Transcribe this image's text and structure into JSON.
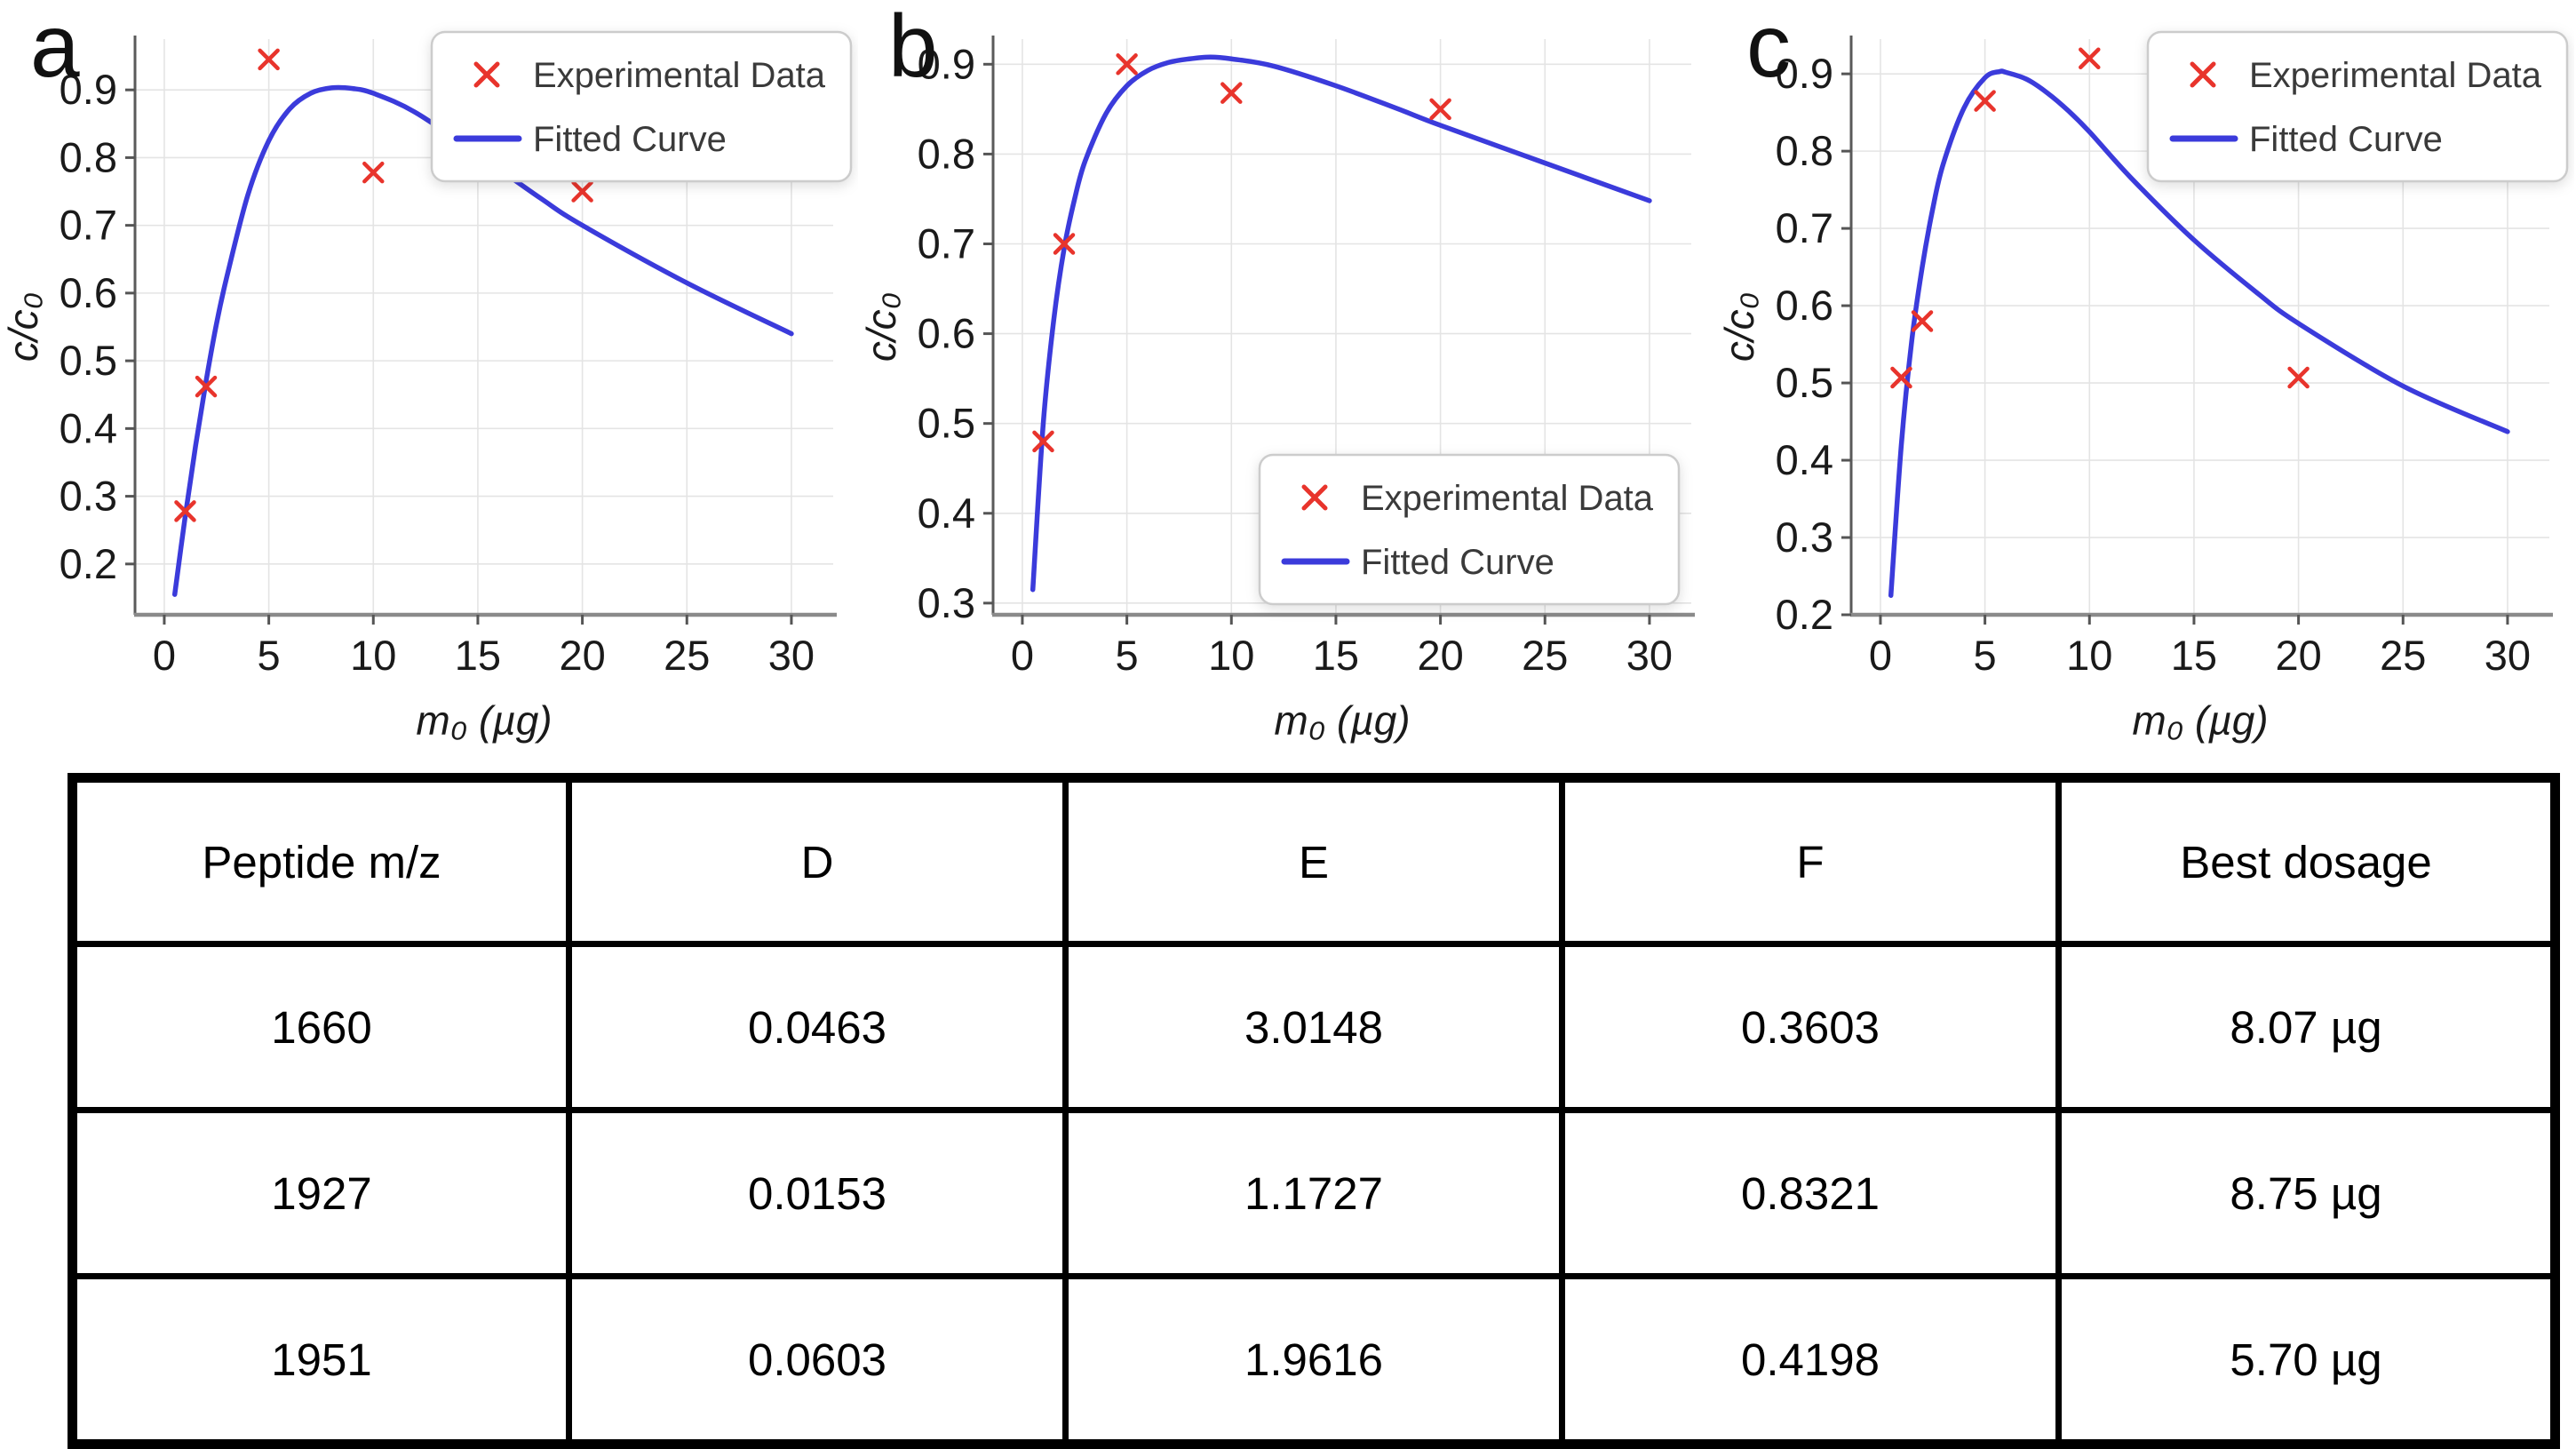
{
  "colors": {
    "curve": "#3b3bdb",
    "marker": "#e8342c",
    "grid": "#e4e4e4",
    "spine_left": "#5a5a5a",
    "spine_bottom": "#8a8a8a",
    "tick": "#555555",
    "text": "#1a1a1a",
    "legend_border": "#cccccc",
    "legend_text": "#3a3a3a"
  },
  "chart_data": [
    {
      "type": "scatter",
      "panel_label": "a",
      "xlabel": "m₀ (µg)",
      "ylabel": "c/c₀",
      "xlim": [
        -1.4,
        32
      ],
      "ylim": [
        0.125,
        0.975
      ],
      "x_ticks": [
        0,
        5,
        10,
        15,
        20,
        25,
        30
      ],
      "y_ticks": [
        0.2,
        0.3,
        0.4,
        0.5,
        0.6,
        0.7,
        0.8,
        0.9
      ],
      "grid": true,
      "legend_position": "top-right",
      "series": [
        {
          "name": "Experimental Data",
          "type": "scatter",
          "marker": "x",
          "x": [
            1,
            2,
            5,
            10,
            20
          ],
          "y": [
            0.278,
            0.462,
            0.945,
            0.778,
            0.75
          ]
        },
        {
          "name": "Fitted Curve",
          "type": "line",
          "x": [
            0.5,
            1,
            1.5,
            2,
            2.5,
            3,
            4,
            5,
            6,
            7,
            8,
            9,
            10,
            12,
            15,
            18,
            20,
            25,
            30
          ],
          "y": [
            0.155,
            0.27,
            0.375,
            0.47,
            0.555,
            0.625,
            0.745,
            0.825,
            0.872,
            0.895,
            0.903,
            0.902,
            0.895,
            0.867,
            0.805,
            0.74,
            0.7,
            0.615,
            0.54
          ]
        }
      ]
    },
    {
      "type": "scatter",
      "panel_label": "b",
      "xlabel": "m₀ (µg)",
      "ylabel": "c/c₀",
      "xlim": [
        -1.4,
        32
      ],
      "ylim": [
        0.287,
        0.928
      ],
      "x_ticks": [
        0,
        5,
        10,
        15,
        20,
        25,
        30
      ],
      "y_ticks": [
        0.3,
        0.4,
        0.5,
        0.6,
        0.7,
        0.8,
        0.9
      ],
      "grid": true,
      "legend_position": "bottom-right",
      "series": [
        {
          "name": "Experimental Data",
          "type": "scatter",
          "marker": "x",
          "x": [
            1,
            2,
            5,
            10,
            20
          ],
          "y": [
            0.48,
            0.7,
            0.9,
            0.868,
            0.85
          ]
        },
        {
          "name": "Fitted Curve",
          "type": "line",
          "x": [
            0.5,
            1,
            1.5,
            2,
            2.5,
            3,
            4,
            5,
            6,
            7,
            8,
            9,
            10,
            12,
            15,
            18,
            20,
            25,
            30
          ],
          "y": [
            0.315,
            0.5,
            0.615,
            0.695,
            0.75,
            0.792,
            0.845,
            0.876,
            0.893,
            0.902,
            0.906,
            0.908,
            0.906,
            0.898,
            0.876,
            0.85,
            0.832,
            0.79,
            0.748
          ]
        }
      ]
    },
    {
      "type": "scatter",
      "panel_label": "c",
      "xlabel": "m₀ (µg)",
      "ylabel": "c/c₀",
      "xlim": [
        -1.4,
        32
      ],
      "ylim": [
        0.2,
        0.945
      ],
      "x_ticks": [
        0,
        5,
        10,
        15,
        20,
        25,
        30
      ],
      "y_ticks": [
        0.2,
        0.3,
        0.4,
        0.5,
        0.6,
        0.7,
        0.8,
        0.9
      ],
      "grid": true,
      "legend_position": "top-right",
      "series": [
        {
          "name": "Experimental Data",
          "type": "scatter",
          "marker": "x",
          "x": [
            1,
            2,
            5,
            10,
            20
          ],
          "y": [
            0.507,
            0.58,
            0.865,
            0.92,
            0.507
          ]
        },
        {
          "name": "Fitted Curve",
          "type": "line",
          "x": [
            0.5,
            1,
            1.5,
            2,
            2.5,
            3,
            4,
            5,
            5.7,
            6,
            7,
            8,
            9,
            10,
            12,
            15,
            18,
            20,
            25,
            30
          ],
          "y": [
            0.225,
            0.42,
            0.555,
            0.65,
            0.725,
            0.783,
            0.856,
            0.895,
            0.903,
            0.902,
            0.893,
            0.875,
            0.852,
            0.825,
            0.765,
            0.685,
            0.617,
            0.577,
            0.496,
            0.437
          ]
        }
      ]
    }
  ],
  "table": {
    "headers": [
      "Peptide m/z",
      "D",
      "E",
      "F",
      "Best dosage"
    ],
    "rows": [
      [
        "1660",
        "0.0463",
        "3.0148",
        "0.3603",
        "8.07 µg"
      ],
      [
        "1927",
        "0.0153",
        "1.1727",
        "0.8321",
        "8.75 µg"
      ],
      [
        "1951",
        "0.0603",
        "1.9616",
        "0.4198",
        "5.70 µg"
      ]
    ]
  }
}
